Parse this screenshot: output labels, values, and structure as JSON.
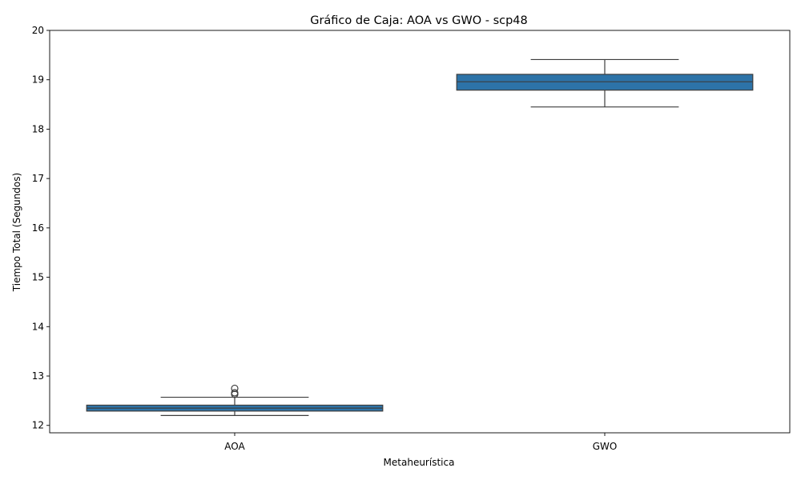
{
  "chart_data": {
    "type": "box",
    "title": "Gráfico de Caja: AOA vs GWO - scp48",
    "xlabel": "Metaheurística",
    "ylabel": "Tiempo Total (Segundos)",
    "ylim": [
      11.85,
      20
    ],
    "yticks": [
      12,
      13,
      14,
      15,
      16,
      17,
      18,
      19,
      20
    ],
    "grid": false,
    "box_color": "#2d73a8",
    "categories": [
      "AOA",
      "GWO"
    ],
    "series": [
      {
        "category": "AOA",
        "whisker_low": 12.2,
        "q1": 12.29,
        "median": 12.35,
        "q3": 12.41,
        "whisker_high": 12.57,
        "outliers": [
          12.63,
          12.66,
          12.75
        ]
      },
      {
        "category": "GWO",
        "whisker_low": 18.45,
        "q1": 18.79,
        "median": 18.96,
        "q3": 19.11,
        "whisker_high": 19.41,
        "outliers": []
      }
    ]
  }
}
